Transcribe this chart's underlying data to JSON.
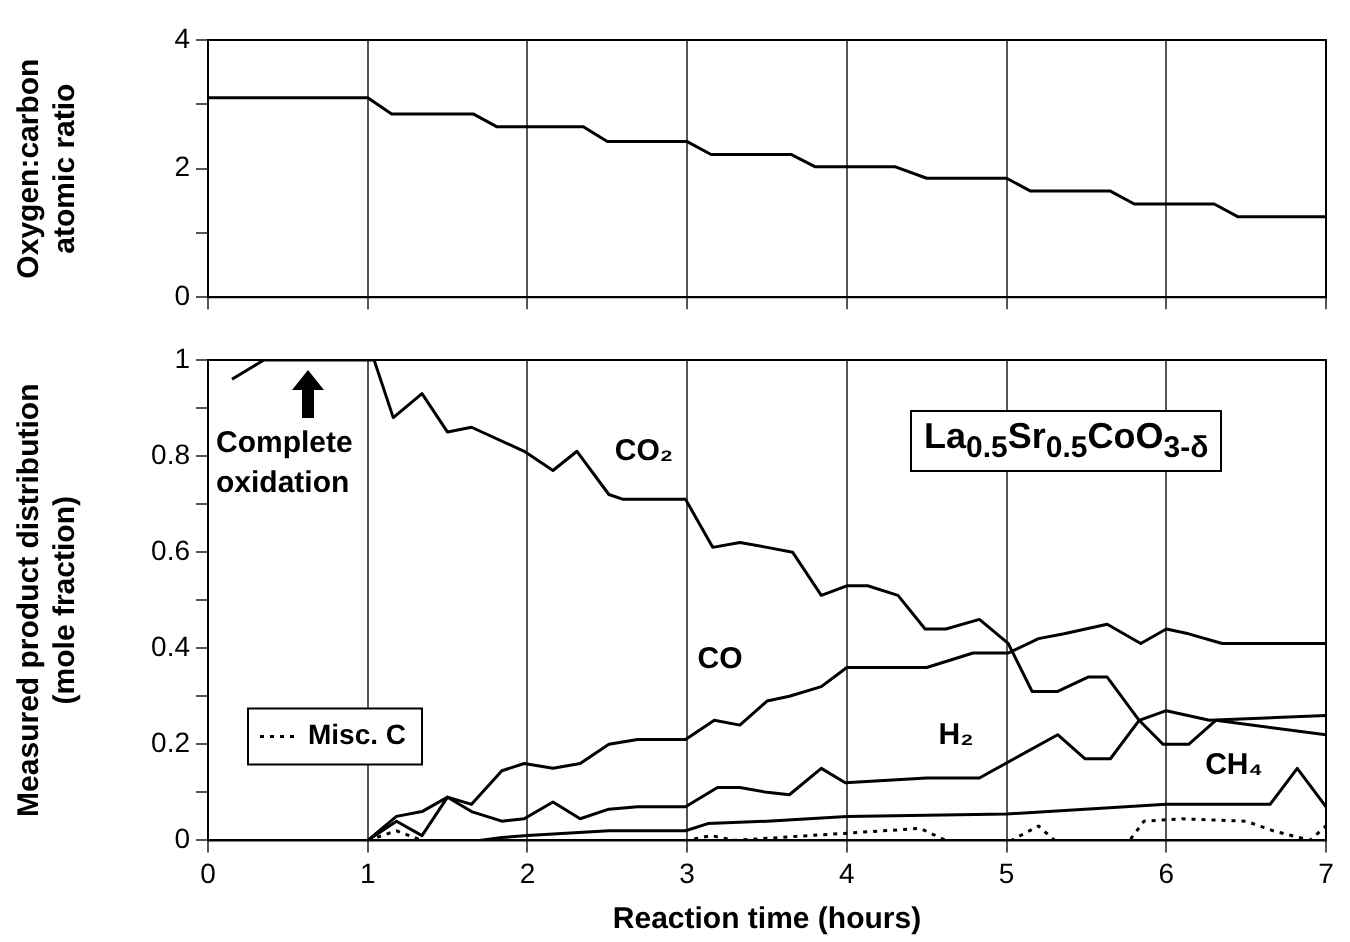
{
  "chart_data": [
    {
      "type": "line",
      "ylabel": "Oxygen:carbon\natomic ratio",
      "xlim": [
        0,
        7
      ],
      "xticks": [
        0,
        1,
        2,
        3,
        4,
        5,
        6,
        7
      ],
      "ylim": [
        0,
        4
      ],
      "yticks": [
        0,
        {
          "value": 1,
          "label": null
        },
        2,
        {
          "value": 3,
          "label": null
        },
        4
      ],
      "grid": "x",
      "tick_labels": "y",
      "marker": "none",
      "line_style": "solid",
      "series": [
        {
          "color": "#000000",
          "x": [
            0,
            1,
            1.15,
            1.66,
            1.81,
            2.35,
            2.5,
            3,
            3.15,
            3.65,
            3.8,
            4.3,
            4.5,
            5,
            5.15,
            5.65,
            5.8,
            6.3,
            6.45,
            7
          ],
          "values": [
            3.1,
            3.1,
            2.85,
            2.85,
            2.65,
            2.65,
            2.42,
            2.42,
            2.22,
            2.22,
            2.03,
            2.03,
            1.85,
            1.85,
            1.65,
            1.65,
            1.45,
            1.45,
            1.25,
            1.25
          ]
        }
      ]
    },
    {
      "type": "line",
      "xlabel": "Reaction time (hours)",
      "ylabel": "Measured product distribution\n(mole fraction)",
      "xlim": [
        0,
        7
      ],
      "xticks": [
        0,
        1,
        2,
        3,
        4,
        5,
        6,
        7
      ],
      "ylim": [
        0,
        1
      ],
      "yticks": [
        0,
        {
          "value": 0.1,
          "label": null
        },
        0.2,
        {
          "value": 0.3,
          "label": null
        },
        0.4,
        {
          "value": 0.5,
          "label": null
        },
        0.6,
        {
          "value": 0.7,
          "label": null
        },
        0.8,
        {
          "value": 0.9,
          "label": null
        },
        1
      ],
      "grid": "x",
      "legend": "bottom left",
      "marker": "none",
      "line_style": "solid",
      "annotations": [
        "Complete oxidation",
        "La$_{0.5}$Sr$_{0.5}$CoO$_{3-δ}$"
      ],
      "series": [
        {
          "name": "CO₂",
          "color": "#000000",
          "x": [
            0.15,
            0.35,
            1,
            1.04,
            1.16,
            1.34,
            1.5,
            1.65,
            1.98,
            2.16,
            2.31,
            2.51,
            2.6,
            2.99,
            3.16,
            3.33,
            3.5,
            3.66,
            3.84,
            4.0,
            4.13,
            4.32,
            4.49,
            4.62,
            4.83,
            5.01,
            5.16,
            5.32,
            5.51,
            5.63,
            5.83,
            5.98,
            6.14,
            6.31,
            7
          ],
          "values": [
            0.96,
            1.0,
            1.0,
            1.0,
            0.88,
            0.93,
            0.85,
            0.86,
            0.81,
            0.77,
            0.81,
            0.72,
            0.71,
            0.71,
            0.61,
            0.62,
            0.61,
            0.6,
            0.51,
            0.53,
            0.53,
            0.51,
            0.44,
            0.44,
            0.46,
            0.41,
            0.31,
            0.31,
            0.34,
            0.34,
            0.25,
            0.2,
            0.2,
            0.25,
            0.22
          ]
        },
        {
          "name": "CO",
          "color": "#000000",
          "x": [
            0,
            1,
            1.18,
            1.34,
            1.5,
            1.65,
            1.84,
            1.98,
            2.16,
            2.33,
            2.51,
            2.69,
            2.99,
            3.17,
            3.33,
            3.5,
            3.64,
            3.84,
            4.0,
            4.5,
            4.79,
            5.01,
            5.2,
            5.36,
            5.63,
            5.84,
            6.0,
            6.14,
            6.35,
            7
          ],
          "values": [
            0,
            0,
            0.05,
            0.06,
            0.09,
            0.075,
            0.145,
            0.16,
            0.15,
            0.16,
            0.2,
            0.21,
            0.21,
            0.25,
            0.24,
            0.29,
            0.3,
            0.32,
            0.36,
            0.36,
            0.39,
            0.39,
            0.42,
            0.43,
            0.45,
            0.41,
            0.44,
            0.43,
            0.41,
            0.41
          ]
        },
        {
          "name": "H₂",
          "color": "#000000",
          "x": [
            1,
            1.18,
            1.34,
            1.5,
            1.65,
            1.84,
            1.98,
            2.16,
            2.33,
            2.51,
            2.69,
            2.99,
            3.19,
            3.33,
            3.5,
            3.64,
            3.84,
            3.99,
            4.5,
            4.83,
            5.32,
            5.49,
            5.65,
            5.83,
            6.0,
            6.27,
            7
          ],
          "values": [
            0,
            0.04,
            0.01,
            0.09,
            0.06,
            0.04,
            0.045,
            0.08,
            0.045,
            0.065,
            0.07,
            0.07,
            0.11,
            0.11,
            0.1,
            0.095,
            0.15,
            0.12,
            0.13,
            0.13,
            0.22,
            0.17,
            0.17,
            0.25,
            0.27,
            0.25,
            0.26
          ]
        },
        {
          "name": "CH₄",
          "color": "#000000",
          "x": [
            0,
            1.7,
            1.84,
            2.0,
            2.51,
            2.99,
            3.13,
            3.5,
            4.0,
            5.0,
            6.0,
            6.65,
            6.82,
            7
          ],
          "values": [
            0,
            0,
            0.006,
            0.01,
            0.02,
            0.02,
            0.035,
            0.04,
            0.05,
            0.055,
            0.075,
            0.075,
            0.15,
            0.07
          ]
        },
        {
          "name": "Misc. C",
          "color": "#000000",
          "line_style": "dotted",
          "x": [
            1,
            1.18,
            1.34,
            3.0,
            3.15,
            3.3,
            4.46,
            4.62,
            5.03,
            5.2,
            5.3,
            5.77,
            5.86,
            6.1,
            6.5,
            6.67,
            6.9,
            7
          ],
          "values": [
            0,
            0.02,
            0,
            0,
            0.01,
            0,
            0.025,
            0,
            0,
            0.03,
            0,
            0,
            0.04,
            0.045,
            0.04,
            0.02,
            0,
            0.03
          ]
        }
      ]
    }
  ]
}
